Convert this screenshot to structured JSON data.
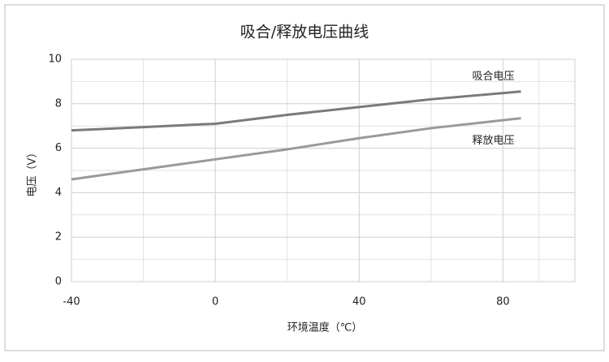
{
  "chart_data": {
    "type": "line",
    "title": "吸合/释放电压曲线",
    "x_label": "环境温度（℃）",
    "y_label": "电压（V）",
    "x": [
      -40,
      -20,
      0,
      20,
      40,
      60,
      85
    ],
    "series": [
      {
        "name": "吸合电压",
        "color": "#7a7a7a",
        "values": [
          6.8,
          6.95,
          7.1,
          7.5,
          7.85,
          8.2,
          8.55
        ]
      },
      {
        "name": "释放电压",
        "color": "#9a9a9a",
        "values": [
          4.6,
          5.05,
          5.5,
          5.95,
          6.45,
          6.9,
          7.35
        ]
      }
    ],
    "xlim": [
      -40,
      100
    ],
    "xticks": [
      -40,
      0,
      40,
      80
    ],
    "ylim": [
      0,
      10
    ],
    "yticks": [
      0,
      2,
      4,
      6,
      8,
      10
    ],
    "grid": true
  }
}
